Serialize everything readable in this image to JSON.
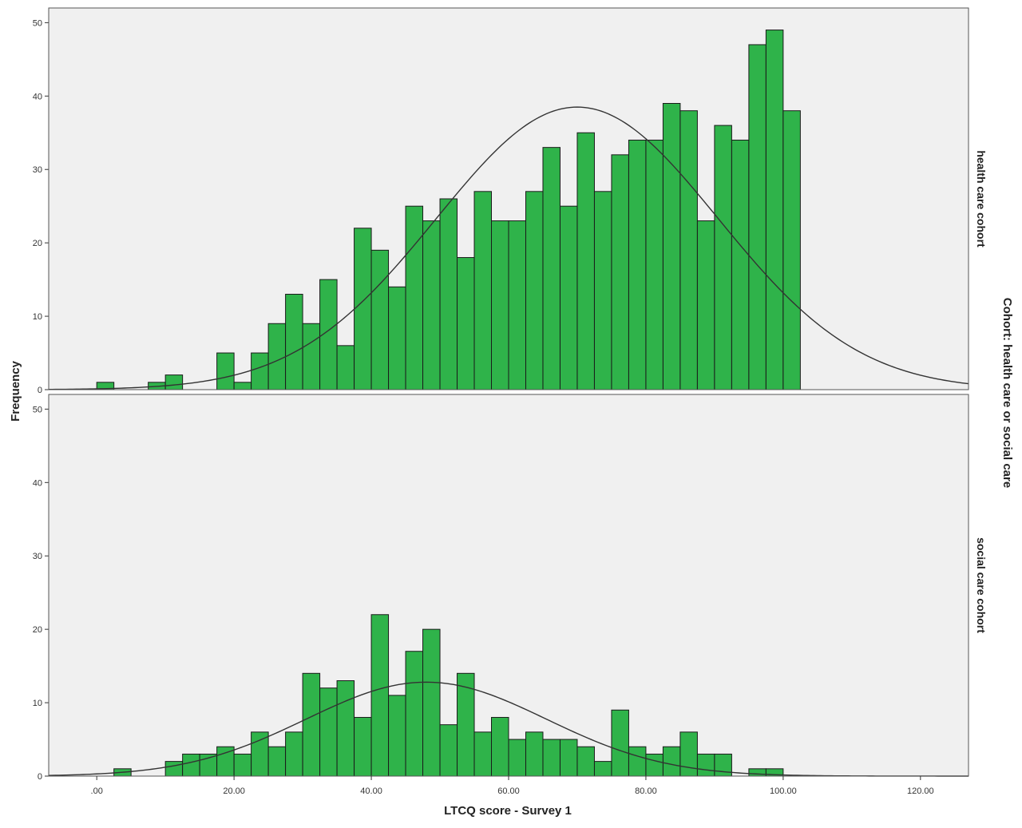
{
  "chart_data": {
    "type": "bar",
    "subtype": "histogram-faceted",
    "xlabel": "LTCQ score - Survey 1",
    "ylabel": "Frequency",
    "facet_label": "Cohort: health care or social care",
    "xlim": [
      -7,
      127
    ],
    "ylim": [
      0,
      52
    ],
    "x_ticks": [
      0,
      20,
      40,
      60,
      80,
      100,
      120
    ],
    "x_tick_labels": [
      ".00",
      "20.00",
      "40.00",
      "60.00",
      "80.00",
      "100.00",
      "120.00"
    ],
    "y_ticks": [
      0,
      10,
      20,
      30,
      40,
      50
    ],
    "y_tick_labels": [
      "0",
      "10",
      "20",
      "30",
      "40",
      "50"
    ],
    "bin_width": 2.5,
    "bar_color": "#2fb34a",
    "bar_edge_color": "#1a1a1a",
    "panel_bg": "#f0f0f0",
    "curve_color": "#333333",
    "grid": false,
    "panels": [
      {
        "name": "health care cohort",
        "bins": [
          {
            "x0": 0,
            "value": 1
          },
          {
            "x0": 7.5,
            "value": 1
          },
          {
            "x0": 10,
            "value": 2
          },
          {
            "x0": 17.5,
            "value": 5
          },
          {
            "x0": 20,
            "value": 1
          },
          {
            "x0": 22.5,
            "value": 5
          },
          {
            "x0": 25,
            "value": 9
          },
          {
            "x0": 27.5,
            "value": 13
          },
          {
            "x0": 30,
            "value": 9
          },
          {
            "x0": 32.5,
            "value": 15
          },
          {
            "x0": 35,
            "value": 6
          },
          {
            "x0": 37.5,
            "value": 22
          },
          {
            "x0": 40,
            "value": 19
          },
          {
            "x0": 42.5,
            "value": 14
          },
          {
            "x0": 45,
            "value": 25
          },
          {
            "x0": 47.5,
            "value": 23
          },
          {
            "x0": 50,
            "value": 26
          },
          {
            "x0": 52.5,
            "value": 18
          },
          {
            "x0": 55,
            "value": 27
          },
          {
            "x0": 57.5,
            "value": 23
          },
          {
            "x0": 60,
            "value": 23
          },
          {
            "x0": 62.5,
            "value": 27
          },
          {
            "x0": 65,
            "value": 33
          },
          {
            "x0": 67.5,
            "value": 25
          },
          {
            "x0": 70,
            "value": 35
          },
          {
            "x0": 72.5,
            "value": 27
          },
          {
            "x0": 75,
            "value": 32
          },
          {
            "x0": 77.5,
            "value": 34
          },
          {
            "x0": 80,
            "value": 34
          },
          {
            "x0": 82.5,
            "value": 39
          },
          {
            "x0": 85,
            "value": 38
          },
          {
            "x0": 87.5,
            "value": 23
          },
          {
            "x0": 90,
            "value": 36
          },
          {
            "x0": 92.5,
            "value": 34
          },
          {
            "x0": 95,
            "value": 47
          },
          {
            "x0": 97.5,
            "value": 49
          },
          {
            "x0": 100,
            "value": 38
          }
        ],
        "normal_curve": {
          "mean": 70,
          "sd": 20.5,
          "peak": 38.5
        }
      },
      {
        "name": "social care cohort",
        "bins": [
          {
            "x0": 2.5,
            "value": 1
          },
          {
            "x0": 10,
            "value": 2
          },
          {
            "x0": 12.5,
            "value": 3
          },
          {
            "x0": 15,
            "value": 3
          },
          {
            "x0": 17.5,
            "value": 4
          },
          {
            "x0": 20,
            "value": 3
          },
          {
            "x0": 22.5,
            "value": 6
          },
          {
            "x0": 25,
            "value": 4
          },
          {
            "x0": 27.5,
            "value": 6
          },
          {
            "x0": 30,
            "value": 14
          },
          {
            "x0": 32.5,
            "value": 12
          },
          {
            "x0": 35,
            "value": 13
          },
          {
            "x0": 37.5,
            "value": 8
          },
          {
            "x0": 40,
            "value": 22
          },
          {
            "x0": 42.5,
            "value": 11
          },
          {
            "x0": 45,
            "value": 17
          },
          {
            "x0": 47.5,
            "value": 20
          },
          {
            "x0": 50,
            "value": 7
          },
          {
            "x0": 52.5,
            "value": 14
          },
          {
            "x0": 55,
            "value": 6
          },
          {
            "x0": 57.5,
            "value": 8
          },
          {
            "x0": 60,
            "value": 5
          },
          {
            "x0": 62.5,
            "value": 6
          },
          {
            "x0": 65,
            "value": 5
          },
          {
            "x0": 67.5,
            "value": 5
          },
          {
            "x0": 70,
            "value": 4
          },
          {
            "x0": 72.5,
            "value": 2
          },
          {
            "x0": 75,
            "value": 9
          },
          {
            "x0": 77.5,
            "value": 4
          },
          {
            "x0": 80,
            "value": 3
          },
          {
            "x0": 82.5,
            "value": 4
          },
          {
            "x0": 85,
            "value": 6
          },
          {
            "x0": 87.5,
            "value": 3
          },
          {
            "x0": 90,
            "value": 3
          },
          {
            "x0": 95,
            "value": 1
          },
          {
            "x0": 97.5,
            "value": 1
          }
        ],
        "normal_curve": {
          "mean": 48,
          "sd": 17.5,
          "peak": 12.8
        }
      }
    ]
  }
}
